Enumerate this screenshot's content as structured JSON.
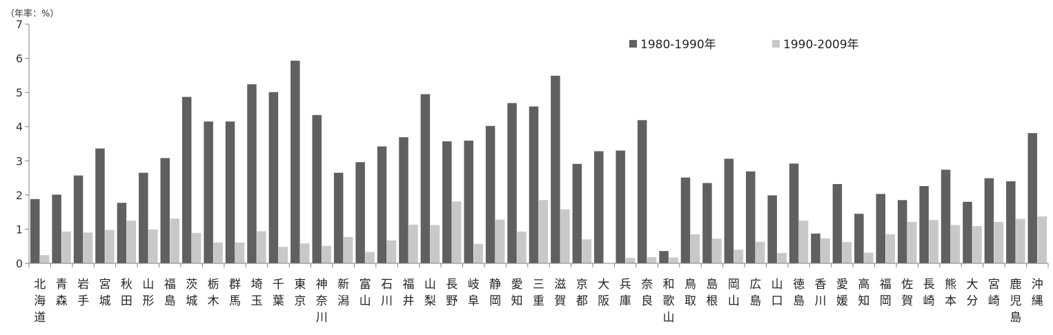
{
  "chart_data": {
    "type": "bar",
    "unit_label": "（年率：%）",
    "ylim": [
      0,
      7
    ],
    "yticks": [
      "0",
      "1",
      "2",
      "3",
      "4",
      "5",
      "6",
      "7"
    ],
    "grid": false,
    "legend_position": "top-right",
    "categories": [
      "北海道",
      "青森",
      "岩手",
      "宮城",
      "秋田",
      "山形",
      "福島",
      "茨城",
      "栃木",
      "群馬",
      "埼玉",
      "千葉",
      "東京",
      "神奈川",
      "新潟",
      "富山",
      "石川",
      "福井",
      "山梨",
      "長野",
      "岐阜",
      "静岡",
      "愛知",
      "三重",
      "滋賀",
      "京都",
      "大阪",
      "兵庫",
      "奈良",
      "和歌山",
      "鳥取",
      "島根",
      "岡山",
      "広島",
      "山口",
      "徳島",
      "香川",
      "愛媛",
      "高知",
      "福岡",
      "佐賀",
      "長崎",
      "熊本",
      "大分",
      "宮崎",
      "鹿児島",
      "沖縄"
    ],
    "series": [
      {
        "name": "1980-1990年",
        "color": "#606060",
        "values": [
          1.88,
          2.01,
          2.57,
          3.36,
          1.77,
          2.65,
          3.08,
          4.87,
          4.15,
          4.15,
          5.24,
          5.01,
          5.93,
          4.34,
          2.65,
          2.96,
          3.42,
          3.69,
          4.95,
          3.57,
          3.59,
          4.02,
          4.69,
          4.59,
          5.49,
          2.91,
          3.28,
          3.3,
          4.19,
          0.36,
          2.51,
          2.35,
          3.06,
          2.69,
          1.99,
          2.92,
          0.87,
          2.32,
          1.45,
          2.03,
          1.85,
          2.26,
          2.74,
          1.8,
          2.49,
          2.4,
          3.81
        ]
      },
      {
        "name": "1990-2009年",
        "color": "#c8c8c8",
        "values": [
          0.24,
          0.93,
          0.9,
          0.98,
          1.25,
          0.99,
          1.31,
          0.89,
          0.61,
          0.61,
          0.94,
          0.48,
          0.58,
          0.51,
          0.77,
          0.33,
          0.67,
          1.13,
          1.12,
          1.81,
          0.57,
          1.28,
          0.93,
          1.85,
          1.58,
          0.7,
          0.0,
          0.16,
          0.18,
          0.17,
          0.85,
          0.72,
          0.4,
          0.63,
          0.3,
          1.25,
          0.73,
          0.62,
          0.31,
          0.85,
          1.21,
          1.27,
          1.12,
          1.09,
          1.21,
          1.3,
          1.37
        ]
      }
    ]
  }
}
